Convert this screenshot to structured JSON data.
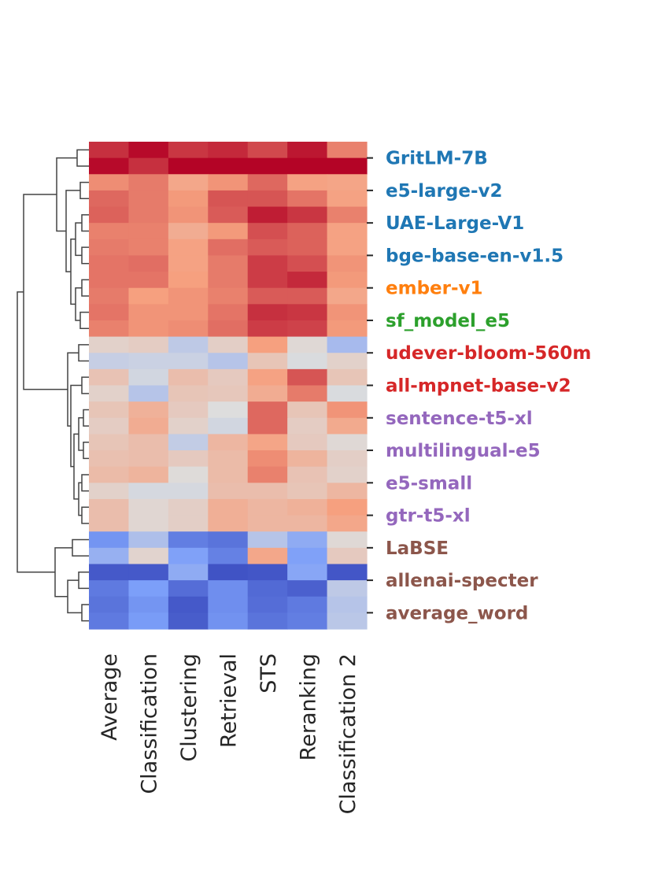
{
  "chart_data": {
    "type": "heatmap",
    "title": "",
    "colormap": "coolwarm",
    "value_range": [
      0,
      1
    ],
    "columns": [
      "Average",
      "Classification",
      "Clustering",
      "Retrieval",
      "STS",
      "Reranking",
      "Classification 2"
    ],
    "rows": [
      {
        "label": "GritLM-7B",
        "color": "#1f77b4",
        "values": [
          0.93,
          0.99,
          0.92,
          0.94,
          0.89,
          0.97,
          0.8
        ]
      },
      {
        "label": "",
        "color": "#1f77b4",
        "values": [
          0.99,
          0.93,
          1.0,
          1.0,
          1.0,
          1.0,
          1.0
        ]
      },
      {
        "label": "e5-large-v2",
        "color": "#1f77b4",
        "values": [
          0.78,
          0.81,
          0.72,
          0.77,
          0.84,
          0.74,
          0.73
        ]
      },
      {
        "label": "",
        "color": "#1f77b4",
        "values": [
          0.84,
          0.81,
          0.76,
          0.87,
          0.87,
          0.82,
          0.74
        ]
      },
      {
        "label": "UAE-Large-V1",
        "color": "#1f77b4",
        "values": [
          0.85,
          0.81,
          0.77,
          0.86,
          0.96,
          0.92,
          0.8
        ]
      },
      {
        "label": "",
        "color": "#1f77b4",
        "values": [
          0.8,
          0.8,
          0.7,
          0.76,
          0.88,
          0.85,
          0.74
        ]
      },
      {
        "label": "bge-base-en-v1.5",
        "color": "#1f77b4",
        "values": [
          0.81,
          0.8,
          0.74,
          0.83,
          0.86,
          0.85,
          0.74
        ]
      },
      {
        "label": "",
        "color": "#1f77b4",
        "values": [
          0.82,
          0.83,
          0.74,
          0.81,
          0.91,
          0.88,
          0.77
        ]
      },
      {
        "label": "ember-v1",
        "color": "#ff7f0e",
        "values": [
          0.82,
          0.82,
          0.75,
          0.81,
          0.91,
          0.94,
          0.76
        ]
      },
      {
        "label": "",
        "color": "#ff7f0e",
        "values": [
          0.81,
          0.75,
          0.77,
          0.8,
          0.86,
          0.86,
          0.72
        ]
      },
      {
        "label": "sf_model_e5",
        "color": "#2ca02c",
        "values": [
          0.82,
          0.77,
          0.77,
          0.82,
          0.93,
          0.92,
          0.77
        ]
      },
      {
        "label": "",
        "color": "#2ca02c",
        "values": [
          0.8,
          0.77,
          0.78,
          0.83,
          0.91,
          0.9,
          0.76
        ]
      },
      {
        "label": "udever-bloom-560m",
        "color": "#d62728",
        "values": [
          0.55,
          0.57,
          0.42,
          0.56,
          0.75,
          0.52,
          0.36
        ]
      },
      {
        "label": "",
        "color": "#d62728",
        "values": [
          0.44,
          0.45,
          0.45,
          0.4,
          0.6,
          0.49,
          0.55
        ]
      },
      {
        "label": "all-mpnet-base-v2",
        "color": "#d62728",
        "values": [
          0.61,
          0.47,
          0.63,
          0.58,
          0.74,
          0.87,
          0.6
        ]
      },
      {
        "label": "",
        "color": "#d62728",
        "values": [
          0.55,
          0.4,
          0.6,
          0.59,
          0.7,
          0.81,
          0.49
        ]
      },
      {
        "label": "sentence-t5-xl",
        "color": "#9467bd",
        "values": [
          0.6,
          0.68,
          0.58,
          0.5,
          0.84,
          0.6,
          0.77
        ]
      },
      {
        "label": "",
        "color": "#9467bd",
        "values": [
          0.57,
          0.7,
          0.55,
          0.47,
          0.84,
          0.57,
          0.71
        ]
      },
      {
        "label": "multilingual-e5",
        "color": "#9467bd",
        "values": [
          0.6,
          0.63,
          0.43,
          0.66,
          0.73,
          0.58,
          0.52
        ]
      },
      {
        "label": "",
        "color": "#9467bd",
        "values": [
          0.62,
          0.63,
          0.58,
          0.64,
          0.78,
          0.67,
          0.56
        ]
      },
      {
        "label": "e5-small",
        "color": "#9467bd",
        "values": [
          0.64,
          0.67,
          0.51,
          0.64,
          0.8,
          0.61,
          0.55
        ]
      },
      {
        "label": "",
        "color": "#9467bd",
        "values": [
          0.55,
          0.48,
          0.48,
          0.63,
          0.63,
          0.6,
          0.66
        ]
      },
      {
        "label": "gtr-t5-xl",
        "color": "#9467bd",
        "values": [
          0.63,
          0.53,
          0.56,
          0.69,
          0.66,
          0.68,
          0.75
        ]
      },
      {
        "label": "",
        "color": "#9467bd",
        "values": [
          0.63,
          0.53,
          0.56,
          0.69,
          0.66,
          0.66,
          0.72
        ]
      },
      {
        "label": "LaBSE",
        "color": "#8c564b",
        "values": [
          0.22,
          0.38,
          0.15,
          0.12,
          0.4,
          0.3,
          0.52
        ]
      },
      {
        "label": "",
        "color": "#8c564b",
        "values": [
          0.32,
          0.54,
          0.26,
          0.16,
          0.72,
          0.26,
          0.58
        ]
      },
      {
        "label": "allenai-specter",
        "color": "#8c564b",
        "values": [
          0.04,
          0.04,
          0.3,
          0.02,
          0.03,
          0.28,
          0.03
        ]
      },
      {
        "label": "",
        "color": "#8c564b",
        "values": [
          0.14,
          0.25,
          0.1,
          0.2,
          0.09,
          0.06,
          0.42
        ]
      },
      {
        "label": "average_word",
        "color": "#8c564b",
        "values": [
          0.12,
          0.22,
          0.04,
          0.2,
          0.1,
          0.14,
          0.4
        ]
      },
      {
        "label": "",
        "color": "#8c564b",
        "values": [
          0.14,
          0.24,
          0.05,
          0.21,
          0.12,
          0.15,
          0.41
        ]
      }
    ]
  }
}
